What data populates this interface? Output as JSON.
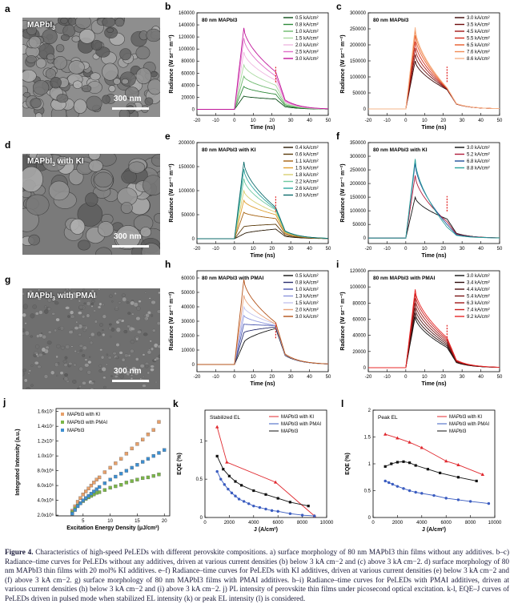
{
  "sem_panels": [
    {
      "label": "a",
      "title": "MAPbI",
      "title_sub": "3",
      "title_suffix": "",
      "scale": "300 nm",
      "tone": "#8e8e8e"
    },
    {
      "label": "d",
      "title": "MAPbI",
      "title_sub": "3",
      "title_suffix": " with KI",
      "scale": "300 nm",
      "tone": "#7a7a7a"
    },
    {
      "label": "g",
      "title": "MAPbI",
      "title_sub": "3",
      "title_suffix": " with PMAI",
      "scale": "300 nm",
      "tone": "#6f6f6f"
    }
  ],
  "chart_data": [
    {
      "id": "b",
      "type": "line",
      "title": "80 nm MAPbI3",
      "xlabel": "Time (ns)",
      "ylabel": "Radiance (W sr⁻¹ m⁻²)",
      "xlim": [
        -20,
        50
      ],
      "ylim": [
        -10000,
        160000
      ],
      "xticks": [
        -20,
        -10,
        0,
        10,
        20,
        30,
        40,
        50
      ],
      "yticks": [
        0,
        20000,
        40000,
        60000,
        80000,
        100000,
        120000,
        140000,
        160000
      ],
      "series": [
        {
          "name": "0.5 kA/cm²",
          "color": "#0b4d18",
          "peak": 22000,
          "plateau": 17000
        },
        {
          "name": "0.8 kA/cm²",
          "color": "#2f8a3a",
          "peak": 38000,
          "plateau": 25000
        },
        {
          "name": "1.0 kA/cm²",
          "color": "#6bb86b",
          "peak": 55000,
          "plateau": 32000
        },
        {
          "name": "1.5 kA/cm²",
          "color": "#a9d9a0",
          "peak": 74000,
          "plateau": 40000
        },
        {
          "name": "2.0 kA/cm²",
          "color": "#f0b8e0",
          "peak": 95000,
          "plateau": 48000
        },
        {
          "name": "2.5 kA/cm²",
          "color": "#e070c8",
          "peak": 118000,
          "plateau": 55000
        },
        {
          "name": "3.0 kA/cm²",
          "color": "#c0179a",
          "peak": 135000,
          "plateau": 62000
        }
      ]
    },
    {
      "id": "c",
      "type": "line",
      "title": "80 nm MAPbI3",
      "xlabel": "Time (ns)",
      "ylabel": "Radiance (W sr⁻¹ m⁻²)",
      "xlim": [
        -20,
        50
      ],
      "ylim": [
        -20000,
        300000
      ],
      "xticks": [
        -20,
        -10,
        0,
        10,
        20,
        30,
        40,
        50
      ],
      "yticks": [
        0,
        50000,
        100000,
        150000,
        200000,
        250000,
        300000
      ],
      "series": [
        {
          "name": "3.0 kA/cm²",
          "color": "#3a0505",
          "peak": 150000,
          "plateau": 60000
        },
        {
          "name": "3.5 kA/cm²",
          "color": "#6e0c0c",
          "peak": 170000,
          "plateau": 62000
        },
        {
          "name": "4.5 kA/cm²",
          "color": "#a31717",
          "peak": 190000,
          "plateau": 63000
        },
        {
          "name": "5.5 kA/cm²",
          "color": "#d02b1a",
          "peak": 210000,
          "plateau": 64000
        },
        {
          "name": "6.5 kA/cm²",
          "color": "#e85a2a",
          "peak": 230000,
          "plateau": 65000
        },
        {
          "name": "7.6 kA/cm²",
          "color": "#f08a55",
          "peak": 245000,
          "plateau": 66000
        },
        {
          "name": "8.6 kA/cm²",
          "color": "#f6b48a",
          "peak": 255000,
          "plateau": 66000
        }
      ]
    },
    {
      "id": "e",
      "type": "line",
      "title": "80 nm MAPbI3 with KI",
      "xlabel": "Time (ns)",
      "ylabel": "Radiance (W sr⁻¹ m⁻²)",
      "xlim": [
        -20,
        50
      ],
      "ylim": [
        -10000,
        200000
      ],
      "xticks": [
        -20,
        -10,
        0,
        10,
        20,
        30,
        40,
        50
      ],
      "yticks": [
        0,
        50000,
        100000,
        150000,
        200000
      ],
      "series": [
        {
          "name": "0.4 kA/cm²",
          "color": "#2a1a05",
          "peak": 10000,
          "plateau": 20000
        },
        {
          "name": "0.6 kA/cm²",
          "color": "#5a3a0a",
          "peak": 25000,
          "plateau": 30000
        },
        {
          "name": "1.1 kA/cm²",
          "color": "#a5610f",
          "peak": 55000,
          "plateau": 42000
        },
        {
          "name": "1.5 kA/cm²",
          "color": "#e0a030",
          "peak": 80000,
          "plateau": 50000
        },
        {
          "name": "1.8 kA/cm²",
          "color": "#d8cf72",
          "peak": 100000,
          "plateau": 55000
        },
        {
          "name": "2.2 kA/cm²",
          "color": "#6fc9a0",
          "peak": 125000,
          "plateau": 60000
        },
        {
          "name": "2.6 kA/cm²",
          "color": "#2ea7a0",
          "peak": 145000,
          "plateau": 62000
        },
        {
          "name": "3.0 kA/cm²",
          "color": "#0d6b6b",
          "peak": 160000,
          "plateau": 65000
        }
      ]
    },
    {
      "id": "f",
      "type": "line",
      "title": "80 nm MAPbI3 with KI",
      "xlabel": "Time (ns)",
      "ylabel": "Radiance (W sr⁻¹ m⁻²)",
      "xlim": [
        -20,
        50
      ],
      "ylim": [
        -20000,
        350000
      ],
      "xticks": [
        -20,
        -10,
        0,
        10,
        20,
        30,
        40,
        50
      ],
      "yticks": [
        0,
        50000,
        100000,
        150000,
        200000,
        250000,
        300000,
        350000
      ],
      "series": [
        {
          "name": "3.0 kA/cm²",
          "color": "#111111",
          "peak": 150000,
          "plateau": 70000
        },
        {
          "name": "5.2 kA/cm²",
          "color": "#b01c3a",
          "peak": 230000,
          "plateau": 60000
        },
        {
          "name": "6.8 kA/cm²",
          "color": "#1f4f9a",
          "peak": 275000,
          "plateau": 50000
        },
        {
          "name": "8.8 kA/cm²",
          "color": "#2aa39a",
          "peak": 290000,
          "plateau": 40000
        }
      ]
    },
    {
      "id": "h",
      "type": "line",
      "title": "80 nm MAPbI3 with PMAI",
      "xlabel": "Time (ns)",
      "ylabel": "Radiance (W sr⁻¹ m⁻²)",
      "xlim": [
        -20,
        50
      ],
      "ylim": [
        -5000,
        65000
      ],
      "xticks": [
        -20,
        -10,
        0,
        10,
        20,
        30,
        40,
        50
      ],
      "yticks": [
        0,
        10000,
        20000,
        30000,
        40000,
        50000,
        60000
      ],
      "series": [
        {
          "name": "0.5 kA/cm²",
          "color": "#111111",
          "peak": 15000,
          "plateau": 25000
        },
        {
          "name": "0.8 kA/cm²",
          "color": "#2a2f6f",
          "peak": 22000,
          "plateau": 26000
        },
        {
          "name": "1.0 kA/cm²",
          "color": "#4a56b0",
          "peak": 28000,
          "plateau": 27000
        },
        {
          "name": "1.3 kA/cm²",
          "color": "#8c95dd",
          "peak": 34000,
          "plateau": 27000
        },
        {
          "name": "1.5 kA/cm²",
          "color": "#c4c4ee",
          "peak": 40000,
          "plateau": 28000
        },
        {
          "name": "2.0 kA/cm²",
          "color": "#e8a27a",
          "peak": 48000,
          "plateau": 28000
        },
        {
          "name": "3.0 kA/cm²",
          "color": "#b4531a",
          "peak": 59000,
          "plateau": 29000
        }
      ]
    },
    {
      "id": "i",
      "type": "line",
      "title": "80 nm MAPbI3 with PMAI",
      "xlabel": "Time (ns)",
      "ylabel": "Radiance (W sr⁻¹ m⁻²)",
      "xlim": [
        -20,
        50
      ],
      "ylim": [
        -5000,
        120000
      ],
      "xticks": [
        -20,
        -10,
        0,
        10,
        20,
        30,
        40,
        50
      ],
      "yticks": [
        0,
        20000,
        40000,
        60000,
        80000,
        100000,
        120000
      ],
      "series": [
        {
          "name": "3.0 kA/cm²",
          "color": "#111111",
          "peak": 63000,
          "plateau": 25000
        },
        {
          "name": "3.4 kA/cm²",
          "color": "#2d0b0b",
          "peak": 68000,
          "plateau": 27000
        },
        {
          "name": "4.4 kA/cm²",
          "color": "#4f1111",
          "peak": 74000,
          "plateau": 29000
        },
        {
          "name": "5.4 kA/cm²",
          "color": "#7a1515",
          "peak": 80000,
          "plateau": 31000
        },
        {
          "name": "6.3 kA/cm²",
          "color": "#a01818",
          "peak": 86000,
          "plateau": 33000
        },
        {
          "name": "7.4 kA/cm²",
          "color": "#c81e1e",
          "peak": 92000,
          "plateau": 35000
        },
        {
          "name": "9.2 kA/cm²",
          "color": "#e82828",
          "peak": 97000,
          "plateau": 37000
        }
      ]
    },
    {
      "id": "j",
      "type": "scatter",
      "xlabel": "Excitation Energy Density (μJ/cm²)",
      "ylabel": "Integrated Intensity (a.u.)",
      "xlim": [
        0,
        21
      ],
      "ylim": [
        1.9,
        16.4
      ],
      "xticks": [
        5,
        10,
        15,
        20
      ],
      "ytick_labels": [
        "2.0x10⁶",
        "4.0x10⁶",
        "6.0x10⁶",
        "8.0x10⁶",
        "1.0x10⁷",
        "1.2x10⁷",
        "1.4x10⁷",
        "1.6x10⁷"
      ],
      "ytick_values": [
        2,
        4,
        6,
        8,
        10,
        12,
        14,
        16
      ],
      "series": [
        {
          "name": "MAPbI3 with KI",
          "color": "#e7a06a",
          "marker": "square",
          "x": [
            3,
            3.5,
            4,
            4.5,
            5,
            5.5,
            6,
            6.5,
            7,
            7.5,
            8,
            9,
            10,
            11,
            12,
            13,
            14,
            15,
            16,
            17,
            18,
            19
          ],
          "y": [
            2.6,
            3.2,
            3.8,
            4.3,
            4.8,
            5.2,
            5.6,
            6.0,
            6.4,
            6.8,
            7.1,
            7.8,
            8.4,
            9.0,
            9.6,
            10.3,
            11.0,
            11.6,
            12.2,
            12.9,
            13.5,
            14.6
          ]
        },
        {
          "name": "MAPbI3 with PMAI",
          "color": "#7ab648",
          "marker": "square",
          "x": [
            3,
            3.5,
            4,
            4.5,
            5,
            5.5,
            6,
            6.5,
            7,
            7.5,
            8,
            9,
            10,
            11,
            12,
            13,
            14,
            15,
            16,
            17,
            18,
            19
          ],
          "y": [
            2.4,
            2.9,
            3.3,
            3.6,
            3.9,
            4.2,
            4.4,
            4.6,
            4.8,
            5.0,
            5.1,
            5.4,
            5.7,
            5.9,
            6.1,
            6.4,
            6.6,
            6.8,
            7.0,
            7.1,
            7.3,
            7.5
          ]
        },
        {
          "name": "MAPbI3",
          "color": "#3d8fd1",
          "marker": "square",
          "x": [
            3,
            3.5,
            4,
            4.5,
            5,
            5.5,
            6,
            6.5,
            7,
            7.5,
            8,
            9,
            10,
            11,
            12,
            13,
            14,
            15,
            16,
            17,
            18,
            19,
            20
          ],
          "y": [
            2.2,
            2.7,
            3.2,
            3.6,
            4.0,
            4.3,
            4.6,
            4.9,
            5.2,
            5.5,
            5.8,
            6.3,
            6.8,
            7.2,
            7.6,
            8.0,
            8.4,
            8.8,
            9.2,
            9.6,
            10.0,
            10.4,
            10.8
          ]
        }
      ]
    },
    {
      "id": "k",
      "type": "line",
      "title": "Stabilized EL",
      "xlabel": "J (A/cm²)",
      "ylabel": "EQE (%)",
      "xlim": [
        0,
        10000
      ],
      "ylim": [
        0,
        1.4
      ],
      "xticks": [
        0,
        2000,
        4000,
        6000,
        8000,
        10000
      ],
      "yticks": [
        0,
        0.5,
        1.0
      ],
      "series": [
        {
          "name": "MAPbI3 with KI",
          "color": "#e0282e",
          "marker": "triangle",
          "x": [
            1000,
            1800,
            5800,
            9000
          ],
          "y": [
            1.18,
            0.72,
            0.46,
            0.02
          ]
        },
        {
          "name": "MAPbI3 with PMAI",
          "color": "#3a5cc0",
          "marker": "circle",
          "x": [
            1000,
            1300,
            1600,
            1900,
            2200,
            2500,
            2800,
            3200,
            3600,
            4000,
            4500,
            5000,
            5500,
            6000,
            7000,
            8000,
            9000
          ],
          "y": [
            0.6,
            0.5,
            0.43,
            0.37,
            0.32,
            0.28,
            0.24,
            0.21,
            0.18,
            0.15,
            0.13,
            0.11,
            0.09,
            0.08,
            0.05,
            0.03,
            0.02
          ]
        },
        {
          "name": "MAPbI3",
          "color": "#111111",
          "marker": "square",
          "x": [
            1000,
            1500,
            2000,
            2500,
            3000,
            4000,
            5000,
            6000,
            7000,
            8500
          ],
          "y": [
            0.8,
            0.63,
            0.54,
            0.47,
            0.42,
            0.35,
            0.3,
            0.25,
            0.2,
            0.15
          ]
        }
      ]
    },
    {
      "id": "l",
      "type": "line",
      "title": "Peak EL",
      "xlabel": "J (A/cm²)",
      "ylabel": "EQE (%)",
      "xlim": [
        0,
        10000
      ],
      "ylim": [
        0,
        2.0
      ],
      "xticks": [
        0,
        2000,
        4000,
        6000,
        8000,
        10000
      ],
      "yticks": [
        0.0,
        0.5,
        1.0,
        1.5,
        2.0
      ],
      "series": [
        {
          "name": "MAPbI3 with KI",
          "color": "#e0282e",
          "marker": "triangle",
          "x": [
            1000,
            2000,
            3000,
            4000,
            6000,
            7000,
            9000
          ],
          "y": [
            1.55,
            1.48,
            1.4,
            1.3,
            1.05,
            0.98,
            0.8
          ]
        },
        {
          "name": "MAPbI3 with PMAI",
          "color": "#3a5cc0",
          "marker": "circle",
          "x": [
            1000,
            1300,
            1600,
            2000,
            2500,
            3000,
            3500,
            4000,
            5000,
            6000,
            7000,
            8000,
            9500
          ],
          "y": [
            0.68,
            0.65,
            0.62,
            0.58,
            0.54,
            0.5,
            0.47,
            0.45,
            0.41,
            0.36,
            0.33,
            0.3,
            0.26
          ]
        },
        {
          "name": "MAPbI3",
          "color": "#111111",
          "marker": "square",
          "x": [
            1000,
            1500,
            2000,
            2500,
            3000,
            3500,
            4500,
            5500,
            7000,
            8500
          ],
          "y": [
            0.95,
            1.0,
            1.03,
            1.04,
            1.02,
            0.97,
            0.9,
            0.83,
            0.75,
            0.68
          ]
        }
      ]
    }
  ],
  "caption": {
    "lead": "Figure 4.",
    "text": " Characteristics of high-speed PeLEDs with different perovskite compositions. a) surface morphology of 80 nm MAPbI3 thin films without any additives. b–c) Radiance–time curves for PeLEDs without any additives, driven at various current densities (b) below 3 kA cm−2 and (c) above 3 kA cm−2. d) surface morphology of 80 nm MAPbI3 thin films with 20 mol% KI additives. e–f) Radiance–time curves for PeLEDs with KI additives, driven at various current densities (e) below 3 kA cm−2 and (f) above 3 kA cm−2. g) surface morphology of 80 nm MAPbI3 films with PMAI additives. h–i) Radiance–time curves for PeLEDs with PMAI additives, driven at various current densities (h) below 3 kA cm−2 and (i) above 3 kA cm−2. j) PL intensity of perovskite thin films under picosecond optical excitation. k-l, EQE–J curves of PeLEDs driven in pulsed mode when stabilized EL intensity (k) or peak EL intensity (l) is considered."
  }
}
